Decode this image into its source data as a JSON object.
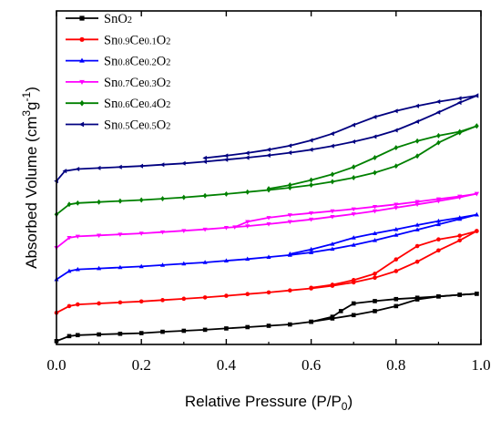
{
  "chart_data": {
    "type": "line",
    "xlabel_main": "Relative Pressure (P/P",
    "xlabel_sub": "0",
    "xlabel_end": ")",
    "ylabel_main": "Absorbed Volume (cm",
    "ylabel_sup1": "3",
    "ylabel_mid": "g",
    "ylabel_sup2": "-1",
    "ylabel_end": ")",
    "xlim": [
      0.0,
      1.0
    ],
    "ylim": [
      0,
      100
    ],
    "x_ticks": [
      "0.0",
      "0.2",
      "0.4",
      "0.6",
      "0.8",
      "1.0"
    ],
    "x_tick_values": [
      0.0,
      0.2,
      0.4,
      0.6,
      0.8,
      1.0
    ],
    "y_tick_labels_visible": false,
    "legend_position": "top-left",
    "series": [
      {
        "color": "#000000",
        "marker": "square",
        "legend": [
          {
            "t": "SnO",
            "s": ""
          },
          {
            "t": "2",
            "s": "sub"
          }
        ],
        "adsorption": [
          [
            0.0,
            1.0
          ],
          [
            0.03,
            2.5
          ],
          [
            0.05,
            2.8
          ],
          [
            0.1,
            3.0
          ],
          [
            0.15,
            3.2
          ],
          [
            0.2,
            3.4
          ],
          [
            0.25,
            3.8
          ],
          [
            0.3,
            4.1
          ],
          [
            0.35,
            4.4
          ],
          [
            0.4,
            4.8
          ],
          [
            0.45,
            5.2
          ],
          [
            0.5,
            5.6
          ],
          [
            0.55,
            6.0
          ],
          [
            0.6,
            6.8
          ],
          [
            0.65,
            7.8
          ],
          [
            0.7,
            8.8
          ],
          [
            0.75,
            10.0
          ],
          [
            0.8,
            11.5
          ],
          [
            0.85,
            13.5
          ],
          [
            0.9,
            14.4
          ],
          [
            0.95,
            14.9
          ],
          [
            0.99,
            15.2
          ]
        ],
        "desorption": [
          [
            0.99,
            15.2
          ],
          [
            0.95,
            14.9
          ],
          [
            0.9,
            14.4
          ],
          [
            0.85,
            14.0
          ],
          [
            0.8,
            13.6
          ],
          [
            0.75,
            13.0
          ],
          [
            0.7,
            12.3
          ],
          [
            0.67,
            10.0
          ],
          [
            0.65,
            8.3
          ],
          [
            0.6,
            6.8
          ]
        ]
      },
      {
        "color": "#ff0000",
        "marker": "circle",
        "legend": [
          {
            "t": "Sn",
            "s": ""
          },
          {
            "t": "0.9",
            "s": "sub"
          },
          {
            "t": "Ce",
            "s": ""
          },
          {
            "t": "0.1",
            "s": "sub"
          },
          {
            "t": "O",
            "s": ""
          },
          {
            "t": "2",
            "s": "sub"
          }
        ],
        "adsorption": [
          [
            0.0,
            9.5
          ],
          [
            0.03,
            11.5
          ],
          [
            0.05,
            12.0
          ],
          [
            0.1,
            12.3
          ],
          [
            0.15,
            12.6
          ],
          [
            0.2,
            12.9
          ],
          [
            0.25,
            13.3
          ],
          [
            0.3,
            13.7
          ],
          [
            0.35,
            14.1
          ],
          [
            0.4,
            14.6
          ],
          [
            0.45,
            15.1
          ],
          [
            0.5,
            15.6
          ],
          [
            0.55,
            16.2
          ],
          [
            0.6,
            16.8
          ],
          [
            0.65,
            17.6
          ],
          [
            0.7,
            18.6
          ],
          [
            0.75,
            20.0
          ],
          [
            0.8,
            22.0
          ],
          [
            0.85,
            24.8
          ],
          [
            0.9,
            28.2
          ],
          [
            0.95,
            31.2
          ],
          [
            0.99,
            34.0
          ]
        ],
        "desorption": [
          [
            0.99,
            34.0
          ],
          [
            0.95,
            32.6
          ],
          [
            0.9,
            31.5
          ],
          [
            0.85,
            29.5
          ],
          [
            0.8,
            25.5
          ],
          [
            0.75,
            21.2
          ],
          [
            0.7,
            19.3
          ],
          [
            0.65,
            17.9
          ],
          [
            0.6,
            17.0
          ]
        ]
      },
      {
        "color": "#0000ff",
        "marker": "triangle",
        "legend": [
          {
            "t": "Sn",
            "s": ""
          },
          {
            "t": "0.8",
            "s": "sub"
          },
          {
            "t": "Ce",
            "s": ""
          },
          {
            "t": "0.2",
            "s": "sub"
          },
          {
            "t": "O",
            "s": ""
          },
          {
            "t": "2",
            "s": "sub"
          }
        ],
        "adsorption": [
          [
            0.0,
            19.5
          ],
          [
            0.03,
            22.0
          ],
          [
            0.05,
            22.5
          ],
          [
            0.1,
            22.8
          ],
          [
            0.15,
            23.1
          ],
          [
            0.2,
            23.4
          ],
          [
            0.25,
            23.8
          ],
          [
            0.3,
            24.2
          ],
          [
            0.35,
            24.6
          ],
          [
            0.4,
            25.1
          ],
          [
            0.45,
            25.6
          ],
          [
            0.5,
            26.2
          ],
          [
            0.55,
            26.8
          ],
          [
            0.6,
            27.6
          ],
          [
            0.65,
            28.6
          ],
          [
            0.7,
            29.8
          ],
          [
            0.75,
            31.2
          ],
          [
            0.8,
            32.8
          ],
          [
            0.85,
            34.4
          ],
          [
            0.9,
            36.0
          ],
          [
            0.95,
            37.6
          ],
          [
            0.99,
            38.9
          ]
        ],
        "desorption": [
          [
            0.99,
            38.9
          ],
          [
            0.95,
            38.0
          ],
          [
            0.9,
            37.0
          ],
          [
            0.85,
            35.8
          ],
          [
            0.8,
            34.5
          ],
          [
            0.75,
            33.3
          ],
          [
            0.7,
            32.0
          ],
          [
            0.65,
            30.1
          ],
          [
            0.6,
            28.5
          ],
          [
            0.55,
            27.1
          ]
        ]
      },
      {
        "color": "#ff00ff",
        "marker": "triangle-down",
        "legend": [
          {
            "t": "Sn",
            "s": ""
          },
          {
            "t": "0.7",
            "s": "sub"
          },
          {
            "t": "Ce",
            "s": ""
          },
          {
            "t": "0.3",
            "s": "sub"
          },
          {
            "t": "O",
            "s": ""
          },
          {
            "t": "2",
            "s": "sub"
          }
        ],
        "adsorption": [
          [
            0.0,
            29.0
          ],
          [
            0.03,
            32.0
          ],
          [
            0.05,
            32.4
          ],
          [
            0.1,
            32.7
          ],
          [
            0.15,
            33.0
          ],
          [
            0.2,
            33.3
          ],
          [
            0.25,
            33.7
          ],
          [
            0.3,
            34.1
          ],
          [
            0.35,
            34.5
          ],
          [
            0.4,
            35.0
          ],
          [
            0.45,
            35.5
          ],
          [
            0.5,
            36.1
          ],
          [
            0.55,
            36.8
          ],
          [
            0.6,
            37.5
          ],
          [
            0.65,
            38.3
          ],
          [
            0.7,
            39.1
          ],
          [
            0.75,
            40.0
          ],
          [
            0.8,
            41.0
          ],
          [
            0.85,
            42.0
          ],
          [
            0.9,
            43.0
          ],
          [
            0.95,
            44.1
          ],
          [
            0.99,
            45.2
          ]
        ],
        "desorption": [
          [
            0.99,
            45.2
          ],
          [
            0.95,
            44.4
          ],
          [
            0.9,
            43.6
          ],
          [
            0.85,
            42.8
          ],
          [
            0.8,
            42.0
          ],
          [
            0.75,
            41.3
          ],
          [
            0.7,
            40.6
          ],
          [
            0.65,
            40.0
          ],
          [
            0.6,
            39.4
          ],
          [
            0.55,
            38.8
          ],
          [
            0.5,
            38.0
          ],
          [
            0.45,
            36.8
          ],
          [
            0.42,
            35.2
          ]
        ]
      },
      {
        "color": "#008000",
        "marker": "diamond",
        "legend": [
          {
            "t": "Sn",
            "s": ""
          },
          {
            "t": "0.6",
            "s": "sub"
          },
          {
            "t": "Ce",
            "s": ""
          },
          {
            "t": "0.4",
            "s": "sub"
          },
          {
            "t": "O",
            "s": ""
          },
          {
            "t": "2",
            "s": "sub"
          }
        ],
        "adsorption": [
          [
            0.0,
            39.0
          ],
          [
            0.03,
            42.0
          ],
          [
            0.05,
            42.4
          ],
          [
            0.1,
            42.7
          ],
          [
            0.15,
            43.0
          ],
          [
            0.2,
            43.3
          ],
          [
            0.25,
            43.7
          ],
          [
            0.3,
            44.1
          ],
          [
            0.35,
            44.6
          ],
          [
            0.4,
            45.1
          ],
          [
            0.45,
            45.7
          ],
          [
            0.5,
            46.3
          ],
          [
            0.55,
            47.0
          ],
          [
            0.6,
            47.8
          ],
          [
            0.65,
            48.8
          ],
          [
            0.7,
            50.0
          ],
          [
            0.75,
            51.5
          ],
          [
            0.8,
            53.5
          ],
          [
            0.85,
            56.5
          ],
          [
            0.9,
            60.5
          ],
          [
            0.95,
            63.5
          ],
          [
            0.99,
            65.5
          ]
        ],
        "desorption": [
          [
            0.99,
            65.5
          ],
          [
            0.95,
            63.8
          ],
          [
            0.9,
            62.6
          ],
          [
            0.85,
            61.0
          ],
          [
            0.8,
            59.0
          ],
          [
            0.75,
            56.0
          ],
          [
            0.7,
            53.2
          ],
          [
            0.65,
            51.0
          ],
          [
            0.6,
            49.3
          ],
          [
            0.55,
            47.8
          ],
          [
            0.5,
            46.7
          ]
        ]
      },
      {
        "color": "#000080",
        "marker": "triangle-left",
        "legend": [
          {
            "t": "Sn",
            "s": ""
          },
          {
            "t": "0.5",
            "s": "sub"
          },
          {
            "t": "Ce",
            "s": ""
          },
          {
            "t": "0.5",
            "s": "sub"
          },
          {
            "t": "O",
            "s": ""
          },
          {
            "t": "2",
            "s": "sub"
          }
        ],
        "adsorption": [
          [
            0.0,
            49.0
          ],
          [
            0.02,
            52.0
          ],
          [
            0.05,
            52.6
          ],
          [
            0.1,
            52.9
          ],
          [
            0.15,
            53.2
          ],
          [
            0.2,
            53.5
          ],
          [
            0.25,
            53.9
          ],
          [
            0.3,
            54.3
          ],
          [
            0.35,
            54.8
          ],
          [
            0.4,
            55.4
          ],
          [
            0.45,
            56.0
          ],
          [
            0.5,
            56.7
          ],
          [
            0.55,
            57.5
          ],
          [
            0.6,
            58.4
          ],
          [
            0.65,
            59.5
          ],
          [
            0.7,
            60.8
          ],
          [
            0.75,
            62.3
          ],
          [
            0.8,
            64.2
          ],
          [
            0.85,
            66.8
          ],
          [
            0.9,
            69.6
          ],
          [
            0.95,
            72.5
          ],
          [
            0.99,
            74.6
          ]
        ],
        "desorption": [
          [
            0.99,
            74.6
          ],
          [
            0.95,
            73.8
          ],
          [
            0.9,
            72.8
          ],
          [
            0.85,
            71.5
          ],
          [
            0.8,
            70.0
          ],
          [
            0.75,
            68.2
          ],
          [
            0.7,
            65.8
          ],
          [
            0.65,
            63.2
          ],
          [
            0.6,
            61.2
          ],
          [
            0.55,
            59.6
          ],
          [
            0.5,
            58.4
          ],
          [
            0.45,
            57.4
          ],
          [
            0.4,
            56.6
          ],
          [
            0.35,
            55.9
          ]
        ]
      }
    ]
  }
}
